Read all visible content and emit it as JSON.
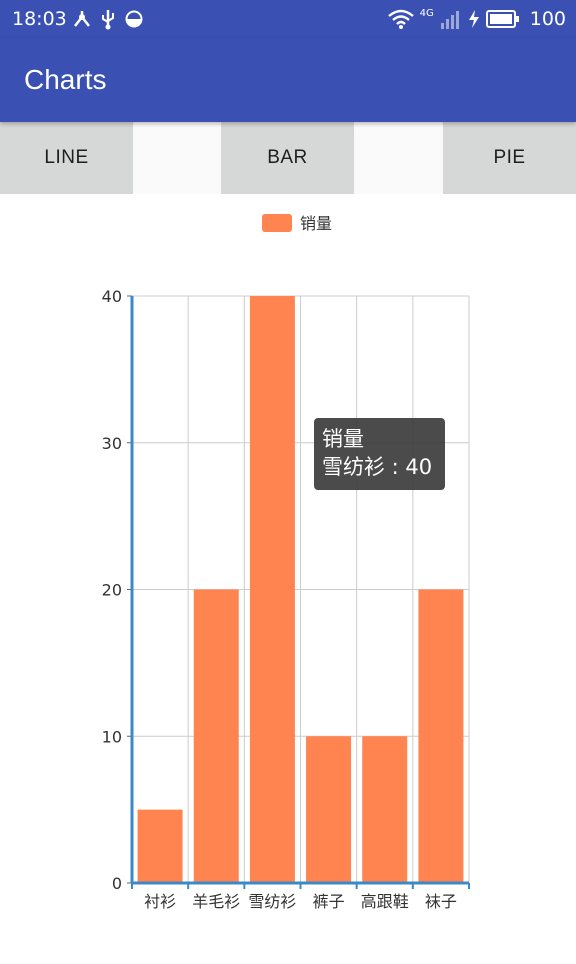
{
  "status_bar": {
    "time": "18:03",
    "network_label": "4G",
    "battery": "100",
    "icons": [
      "usb-tree-icon",
      "usb-icon",
      "data-saver-icon",
      "wifi-icon",
      "signal-icon",
      "charging-icon",
      "battery-icon"
    ]
  },
  "app_bar": {
    "title": "Charts"
  },
  "tabs": [
    {
      "label": "LINE"
    },
    {
      "label": "BAR"
    },
    {
      "label": "PIE"
    }
  ],
  "colors": {
    "primary": "#3a50b3",
    "bar": "#ff8450",
    "axis": "#3a89c9",
    "grid": "#cccccc",
    "tab_bg": "#d6d7d7"
  },
  "chart_data": {
    "type": "bar",
    "categories": [
      "衬衫",
      "羊毛衫",
      "雪纺衫",
      "裤子",
      "高跟鞋",
      "袜子"
    ],
    "series": [
      {
        "name": "销量",
        "values": [
          5,
          20,
          40,
          10,
          10,
          20
        ]
      }
    ],
    "legend": {
      "entries": [
        "销量"
      ],
      "position": "top-center"
    },
    "ylim": [
      0,
      40
    ],
    "yticks": [
      0,
      10,
      20,
      30,
      40
    ],
    "grid": true,
    "tooltip": {
      "series": "销量",
      "text": "雪纺衫 : 40"
    }
  }
}
